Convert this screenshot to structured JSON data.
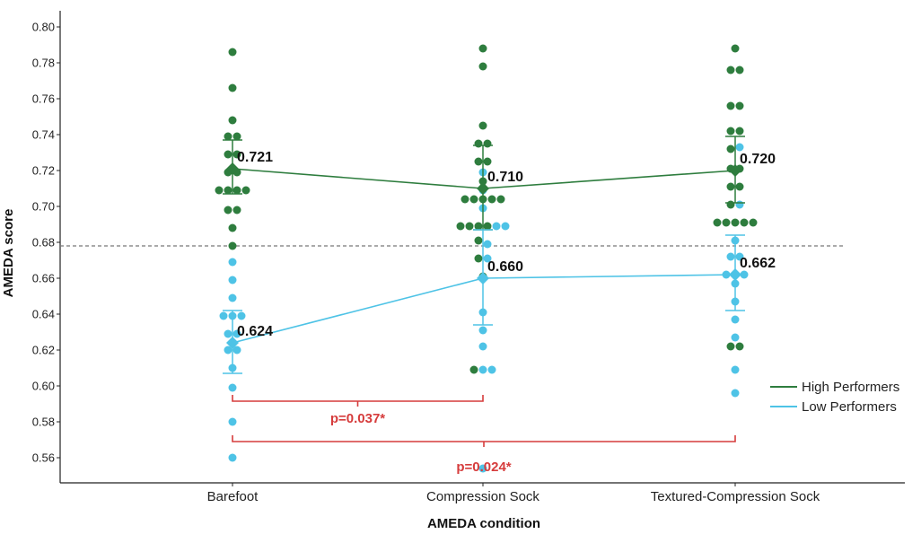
{
  "chart_data": {
    "type": "scatter",
    "xlabel": "AMEDA condition",
    "ylabel": "AMEDA score",
    "ylim": [
      0.55,
      0.8
    ],
    "yticks": [
      "0.56",
      "0.58",
      "0.60",
      "0.62",
      "0.64",
      "0.66",
      "0.68",
      "0.70",
      "0.72",
      "0.74",
      "0.76",
      "0.78",
      "0.80"
    ],
    "categories": [
      "Barefoot",
      "Compression Sock",
      "Textured-Compression Sock"
    ],
    "reference_line": 0.678,
    "series": [
      {
        "name": "High Performers",
        "color": "#2e7d3e",
        "means": [
          0.721,
          0.71,
          0.72
        ],
        "mean_labels": [
          "0.721",
          "0.710",
          "0.720"
        ],
        "error_low": [
          0.707,
          0.687,
          0.702
        ],
        "error_high": [
          0.737,
          0.734,
          0.739
        ],
        "points": [
          [
            0.786,
            0.766,
            0.748,
            0.739,
            0.739,
            0.729,
            0.729,
            0.719,
            0.719,
            0.709,
            0.709,
            0.709,
            0.709,
            0.698,
            0.698,
            0.688,
            0.678
          ],
          [
            0.788,
            0.778,
            0.745,
            0.735,
            0.735,
            0.725,
            0.725,
            0.714,
            0.704,
            0.704,
            0.704,
            0.704,
            0.704,
            0.689,
            0.689,
            0.689,
            0.689,
            0.681,
            0.671,
            0.661,
            0.609
          ],
          [
            0.788,
            0.776,
            0.776,
            0.756,
            0.756,
            0.742,
            0.742,
            0.732,
            0.721,
            0.721,
            0.711,
            0.711,
            0.701,
            0.691,
            0.691,
            0.691,
            0.691,
            0.691,
            0.622,
            0.622
          ]
        ]
      },
      {
        "name": "Low Performers",
        "color": "#4ec3e6",
        "means": [
          0.624,
          0.66,
          0.662
        ],
        "mean_labels": [
          "0.624",
          "0.660",
          "0.662"
        ],
        "error_low": [
          0.607,
          0.634,
          0.642
        ],
        "error_high": [
          0.642,
          0.687,
          0.684
        ],
        "points": [
          [
            0.669,
            0.659,
            0.649,
            0.639,
            0.639,
            0.639,
            0.629,
            0.629,
            0.62,
            0.62,
            0.61,
            0.599,
            0.58,
            0.56
          ],
          [
            0.719,
            0.709,
            0.699,
            0.689,
            0.689,
            0.679,
            0.671,
            0.641,
            0.631,
            0.622,
            0.609,
            0.609,
            0.554
          ],
          [
            0.733,
            0.701,
            0.681,
            0.672,
            0.672,
            0.662,
            0.662,
            0.662,
            0.657,
            0.647,
            0.637,
            0.627,
            0.609,
            0.596
          ]
        ]
      }
    ],
    "comparisons": [
      {
        "label": "p=0.037*",
        "from": 0,
        "to": 1,
        "color": "#d63c3c"
      },
      {
        "label": "p=0.024*",
        "from": 0,
        "to": 2,
        "color": "#d63c3c"
      }
    ],
    "legend_position": "right"
  }
}
